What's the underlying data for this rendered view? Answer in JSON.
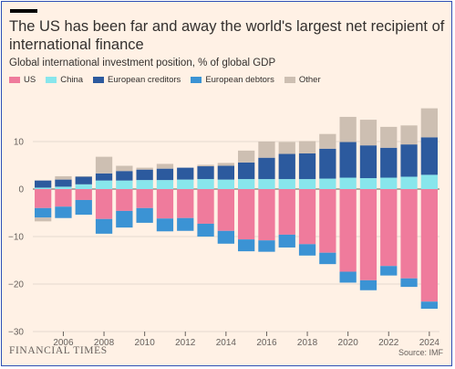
{
  "header": {
    "title": "The US has been far and away the world's largest net recipient of international finance",
    "subtitle": "Global international investment position, % of global GDP"
  },
  "footer": {
    "brand": "FINANCIAL TIMES",
    "source": "Source: IMF"
  },
  "colors": {
    "US": "#ef7b9c",
    "China": "#88e6ec",
    "European creditors": "#2c5a9e",
    "European debtors": "#3b93d4",
    "Other": "#cdbfb2",
    "background": "#fff1e5"
  },
  "chart_data": {
    "type": "bar",
    "stacked": true,
    "ylim": [
      -30,
      20
    ],
    "yticks": [
      -30,
      -20,
      -10,
      0,
      10
    ],
    "xticks": [
      "2006",
      "2008",
      "2010",
      "2012",
      "2014",
      "2016",
      "2018",
      "2020",
      "2022",
      "2024"
    ],
    "categories": [
      "2005",
      "2006",
      "2007",
      "2008",
      "2009",
      "2010",
      "2011",
      "2012",
      "2013",
      "2014",
      "2015",
      "2016",
      "2017",
      "2018",
      "2019",
      "2020",
      "2021",
      "2022",
      "2023",
      "2024"
    ],
    "legend_position": "top-left",
    "series": [
      {
        "name": "US",
        "values": [
          -4.0,
          -3.7,
          -2.3,
          -6.3,
          -4.6,
          -4.0,
          -6.2,
          -6.1,
          -7.3,
          -8.8,
          -10.6,
          -10.8,
          -9.6,
          -11.6,
          -13.4,
          -17.4,
          -19.2,
          -16.2,
          -18.8,
          -23.7
        ]
      },
      {
        "name": "China",
        "values": [
          0.3,
          0.5,
          1.0,
          1.8,
          1.8,
          1.9,
          1.9,
          2.0,
          2.1,
          2.0,
          2.1,
          2.1,
          2.1,
          2.1,
          2.2,
          2.4,
          2.3,
          2.4,
          2.6,
          3.0
        ]
      },
      {
        "name": "European creditors",
        "values": [
          1.5,
          1.5,
          1.6,
          1.5,
          2.0,
          2.2,
          2.4,
          2.5,
          2.7,
          2.9,
          3.5,
          4.5,
          5.3,
          5.4,
          6.3,
          7.5,
          6.9,
          6.3,
          6.8,
          7.9
        ]
      },
      {
        "name": "European debtors",
        "values": [
          -2.0,
          -2.4,
          -3.1,
          -3.1,
          -3.5,
          -3.1,
          -2.7,
          -2.7,
          -2.7,
          -2.7,
          -2.5,
          -2.4,
          -2.7,
          -2.4,
          -2.4,
          -2.3,
          -2.1,
          -2.0,
          -1.8,
          -1.5
        ]
      },
      {
        "name": "Other",
        "values": [
          -0.8,
          0.7,
          0.1,
          3.5,
          1.1,
          0.4,
          1.0,
          0.0,
          0.3,
          0.6,
          2.5,
          3.4,
          2.5,
          2.6,
          3.1,
          5.3,
          5.4,
          4.4,
          4.0,
          6.1
        ]
      }
    ]
  }
}
